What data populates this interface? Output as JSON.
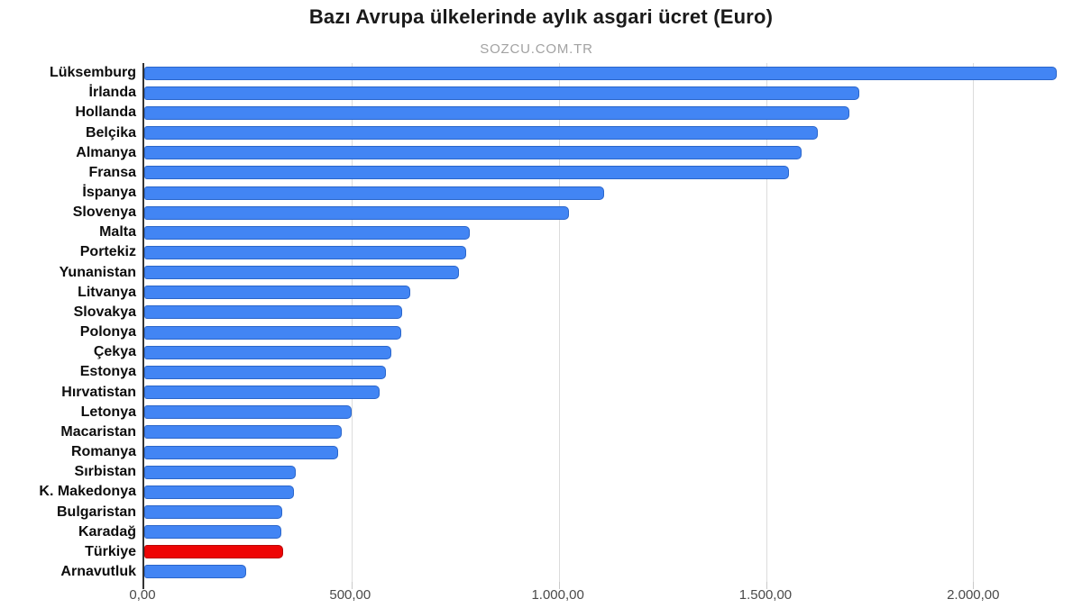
{
  "chart_data": {
    "type": "bar",
    "orientation": "horizontal",
    "title": "Bazı Avrupa ülkelerinde aylık asgari ücret (Euro)",
    "subtitle": "SOZCU.COM.TR",
    "xlabel": "",
    "ylabel": "",
    "xlim": [
      0,
      2236
    ],
    "grid": true,
    "legend": "none",
    "categories": [
      "Lüksemburg",
      "İrlanda",
      "Hollanda",
      "Belçika",
      "Almanya",
      "Fransa",
      "İspanya",
      "Slovenya",
      "Malta",
      "Portekiz",
      "Yunanistan",
      "Litvanya",
      "Slovakya",
      "Polonya",
      "Çekya",
      "Estonya",
      "Hırvatistan",
      "Letonya",
      "Macaristan",
      "Romanya",
      "Sırbistan",
      "K. Makedonya",
      "Bulgaristan",
      "Karadağ",
      "Türkiye",
      "Arnavutluk"
    ],
    "values": [
      2201.93,
      1723.8,
      1701.0,
      1625.72,
      1585.0,
      1554.58,
      1108.33,
      1024.24,
      784.68,
      775.83,
      758.33,
      642.0,
      623.0,
      619.46,
      596.16,
      584.0,
      567.32,
      500.0,
      476.27,
      466.72,
      366.0,
      360.0,
      332.34,
      331.33,
      334.0,
      245.61
    ],
    "x_ticks": {
      "values": [
        0,
        500,
        1000,
        1500,
        2000
      ],
      "labels": [
        "0,00",
        "500,00",
        "1.000,00",
        "1.500,00",
        "2.000,00"
      ]
    },
    "colors": {
      "bar_default": "#4285f4",
      "bar_highlight": "#ee0505",
      "highlight_category": "Türkiye",
      "gridline": "#dcdcdc",
      "axis_line": "#333333",
      "title_text": "#1a1a1a",
      "subtitle_text": "#a2a2a2",
      "tick_text": "#4a4a4a"
    }
  }
}
